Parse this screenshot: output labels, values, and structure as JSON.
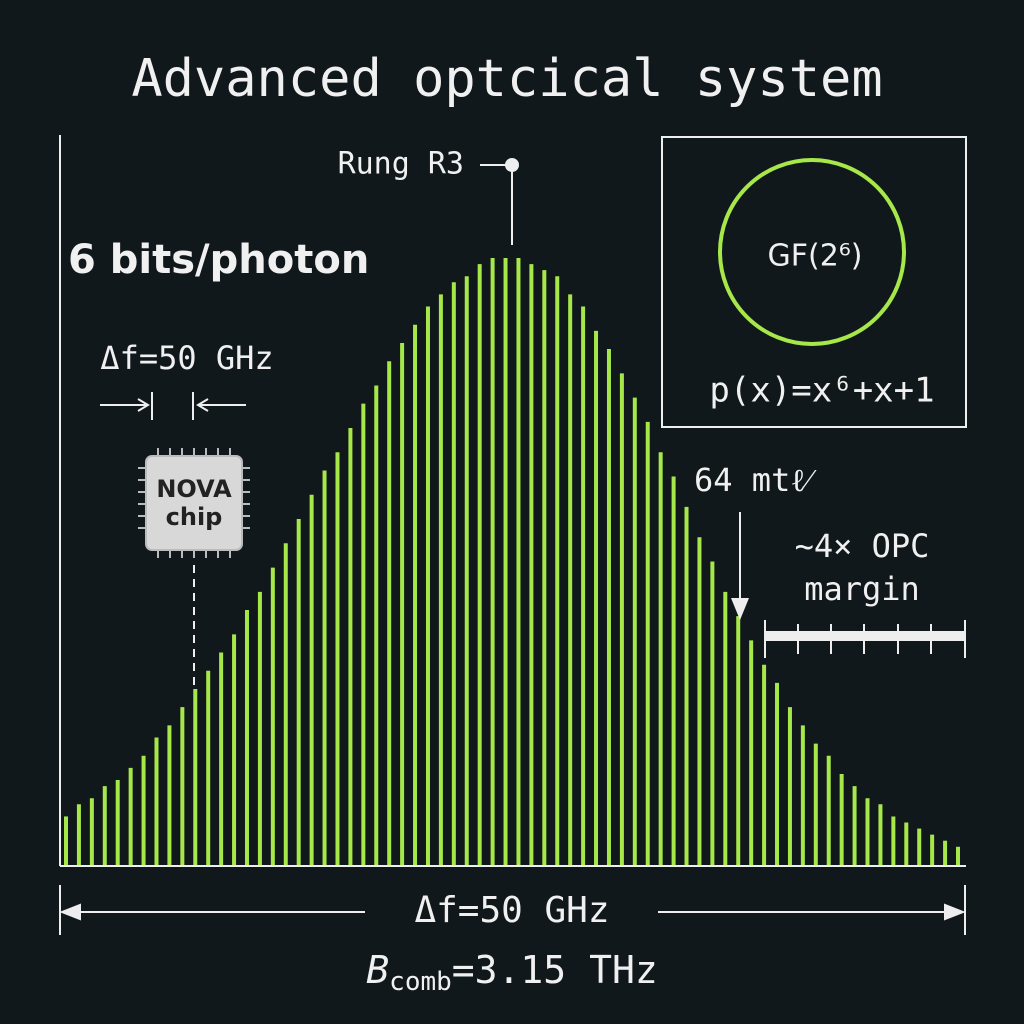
{
  "title": "Advanced optcical system",
  "annotations": {
    "rung": "Rung R3",
    "bits": "6 bits/photon",
    "spacing": "Δf=50 GHz",
    "chip": [
      "NOVA",
      "chip"
    ],
    "field": "GF(2⁶)",
    "polynomial": "p(x)=x⁶+x+1",
    "length": "64 mtℓ⁄",
    "margin": [
      "~4× OPC",
      "margin"
    ]
  },
  "footer": {
    "spacing": "Δf=50 GHz",
    "bandwidth": {
      "symbol": "B",
      "subscript": "comb",
      "value": "=3.15 THz"
    }
  },
  "spectrum": {
    "amplitudes": [
      8,
      10,
      11,
      13,
      14,
      16,
      18,
      21,
      23,
      26,
      29,
      32,
      35,
      38,
      42,
      45,
      49,
      53,
      57,
      61,
      65,
      68,
      72,
      76,
      79,
      83,
      86,
      89,
      92,
      94,
      96,
      97,
      99,
      100,
      100,
      100,
      99,
      98,
      97,
      94,
      92,
      88,
      85,
      81,
      77,
      73,
      68,
      64,
      59,
      54,
      50,
      45,
      41,
      37,
      33,
      30,
      26,
      23,
      20,
      18,
      15,
      13,
      11,
      10,
      8,
      7,
      6,
      5,
      4,
      3
    ]
  }
}
